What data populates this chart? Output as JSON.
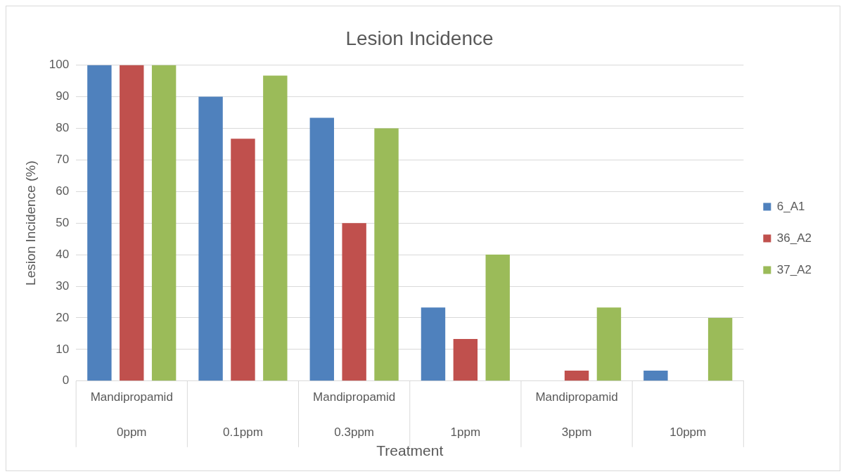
{
  "chart_data": {
    "type": "bar",
    "title": "Lesion Incidence",
    "xlabel": "Treatment",
    "ylabel": "Lesion Incidence (%)",
    "categories": [
      "Mandipropamid\n0ppm",
      "0.1ppm",
      "Mandipropamid\n0.3ppm",
      "1ppm",
      "Mandipropamid\n3ppm",
      "10ppm"
    ],
    "series": [
      {
        "name": "6_A1",
        "color": "#4f81bd",
        "values": [
          100,
          90,
          83.3,
          23.3,
          0,
          3.3
        ]
      },
      {
        "name": "36_A2",
        "color": "#c0504d",
        "values": [
          100,
          76.7,
          50,
          13.3,
          3.3,
          0
        ]
      },
      {
        "name": "37_A2",
        "color": "#9bbb59",
        "values": [
          100,
          96.7,
          80,
          40,
          23.3,
          20
        ]
      }
    ],
    "ylim": [
      0,
      100
    ],
    "yticks": [
      0,
      10,
      20,
      30,
      40,
      50,
      60,
      70,
      80,
      90,
      100
    ],
    "grid": "y",
    "legend": "right"
  }
}
